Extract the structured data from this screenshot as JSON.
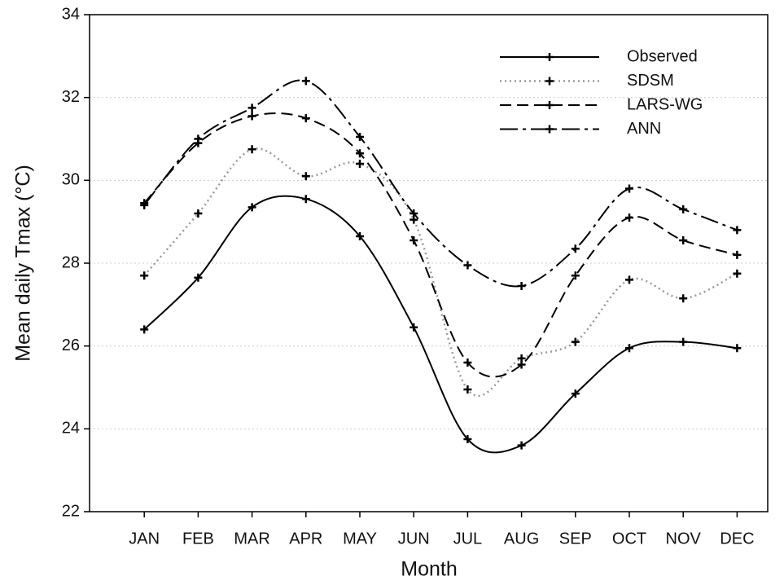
{
  "chart_data": {
    "type": "line",
    "x_label": "Month",
    "y_label": "Mean daily Tmax (°C)",
    "categories": [
      "JAN",
      "FEB",
      "MAR",
      "APR",
      "MAY",
      "JUN",
      "JUL",
      "AUG",
      "SEP",
      "OCT",
      "NOV",
      "DEC"
    ],
    "series": [
      {
        "name": "Observed",
        "color": "#000000",
        "dash": "solid",
        "values": [
          26.4,
          27.65,
          29.35,
          29.55,
          28.65,
          26.45,
          23.75,
          23.6,
          24.85,
          25.95,
          26.1,
          25.95
        ]
      },
      {
        "name": "SDSM",
        "color": "#9a9a9a",
        "dash": "dotted",
        "values": [
          27.7,
          29.2,
          30.75,
          30.1,
          30.4,
          29.05,
          24.95,
          25.7,
          26.1,
          27.6,
          27.15,
          27.75
        ]
      },
      {
        "name": "LARS-WG",
        "color": "#000000",
        "dash": "dashed",
        "values": [
          29.45,
          30.9,
          31.55,
          31.5,
          30.65,
          28.55,
          25.6,
          25.55,
          27.7,
          29.1,
          28.55,
          28.2
        ]
      },
      {
        "name": "ANN",
        "color": "#000000",
        "dash": "dash-dot",
        "values": [
          29.4,
          31.0,
          31.75,
          32.4,
          31.05,
          29.2,
          27.95,
          27.45,
          28.35,
          29.8,
          29.3,
          28.8
        ]
      }
    ],
    "ylim": [
      22,
      34
    ],
    "yticks": [
      22,
      24,
      26,
      28,
      30,
      32,
      34
    ],
    "grid": true,
    "legend": "upper right"
  }
}
